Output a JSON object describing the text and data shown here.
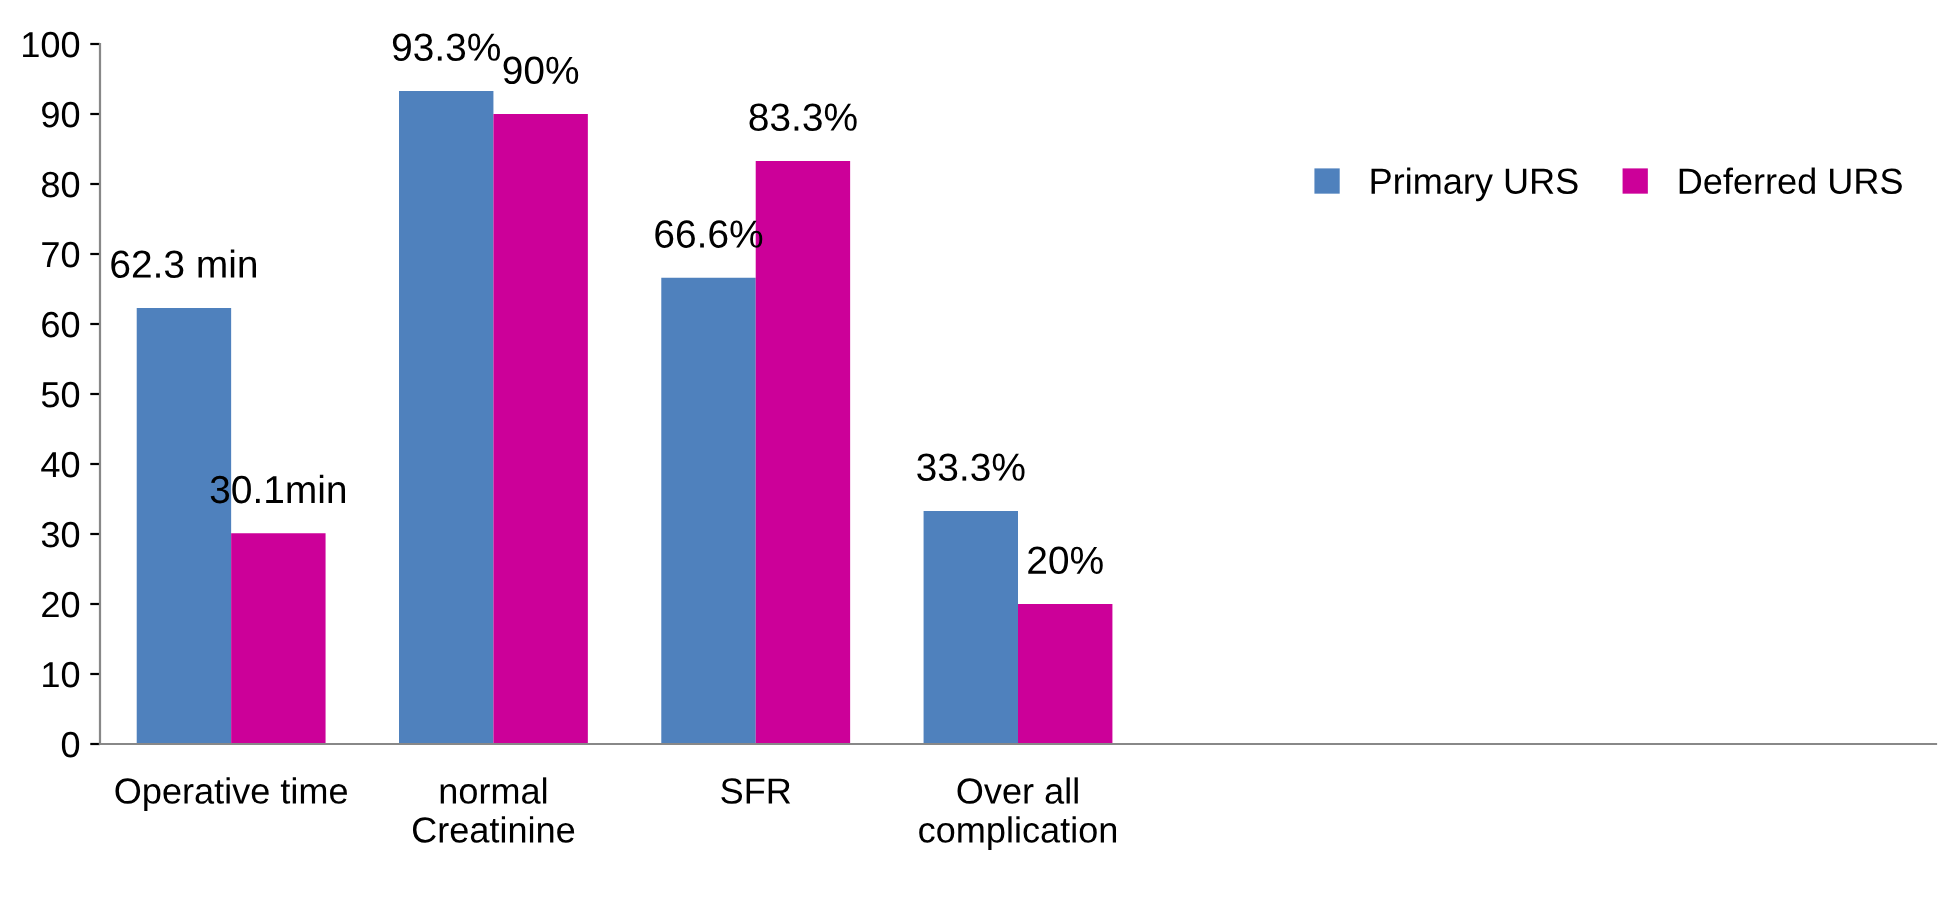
{
  "chart_data": {
    "type": "bar",
    "categories": [
      "Operative time",
      "normal\nCreatinine",
      "SFR",
      "Over all\ncomplication",
      null,
      null,
      null
    ],
    "series": [
      {
        "name": "Primary URS",
        "color": "#4f81bd",
        "values": [
          62.3,
          93.3,
          66.6,
          33.3,
          null,
          null,
          null
        ],
        "value_labels": [
          "62.3 min",
          "93.3%",
          "66.6%",
          "33.3%",
          null,
          null,
          null
        ]
      },
      {
        "name": "Deferred URS",
        "color": "#cc0099",
        "values": [
          30.1,
          90,
          83.3,
          20,
          null,
          null,
          null
        ],
        "value_labels": [
          "30.1min",
          "90%",
          "83.3%",
          "20%",
          null,
          null,
          null
        ]
      }
    ],
    "ylim": [
      0,
      100
    ],
    "yticks": [
      0,
      10,
      20,
      30,
      40,
      50,
      60,
      70,
      80,
      90,
      100
    ],
    "grid": false,
    "legend": "top right"
  }
}
